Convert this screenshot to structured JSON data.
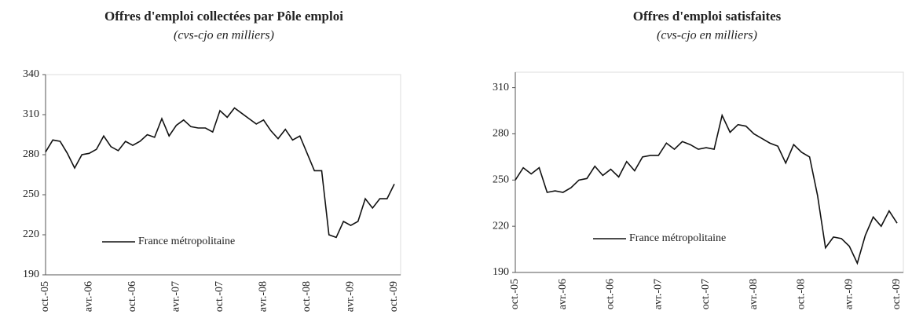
{
  "chart_data": [
    {
      "type": "line",
      "title": "Offres d'emploi collectées par Pôle emploi",
      "subtitle": "(cvs-cjo en milliers)",
      "categories": [
        "oct.-05",
        null,
        null,
        null,
        null,
        null,
        "avr.-06",
        null,
        null,
        null,
        null,
        null,
        "oct.-06",
        null,
        null,
        null,
        null,
        null,
        "avr.-07",
        null,
        null,
        null,
        null,
        null,
        "oct.-07",
        null,
        null,
        null,
        null,
        null,
        "avr.-08",
        null,
        null,
        null,
        null,
        null,
        "oct.-08",
        null,
        null,
        null,
        null,
        null,
        "avr.-09",
        null,
        null,
        null,
        null,
        null,
        "oct.-09"
      ],
      "series": [
        {
          "name": "France métropolitaine",
          "color": "#111111",
          "values": [
            282,
            291,
            290,
            281,
            270,
            280,
            281,
            284,
            294,
            286,
            283,
            290,
            287,
            290,
            295,
            293,
            307,
            294,
            302,
            306,
            301,
            300,
            300,
            297,
            313,
            308,
            315,
            311,
            307,
            303,
            306,
            298,
            292,
            299,
            291,
            294,
            281,
            268,
            268,
            220,
            218,
            230,
            227,
            230,
            247,
            240,
            247,
            247,
            258
          ]
        }
      ],
      "ylim": [
        190,
        340
      ],
      "yticks": [
        190,
        220,
        250,
        280,
        310,
        340
      ]
    },
    {
      "type": "line",
      "title": "Offres d'emploi satisfaites",
      "subtitle": "(cvs-cjo en milliers)",
      "categories": [
        "oct.-05",
        null,
        null,
        null,
        null,
        null,
        "avr.-06",
        null,
        null,
        null,
        null,
        null,
        "oct.-06",
        null,
        null,
        null,
        null,
        null,
        "avr.-07",
        null,
        null,
        null,
        null,
        null,
        "oct.-07",
        null,
        null,
        null,
        null,
        null,
        "avr.-08",
        null,
        null,
        null,
        null,
        null,
        "oct.-08",
        null,
        null,
        null,
        null,
        null,
        "avr.-09",
        null,
        null,
        null,
        null,
        null,
        "oct.-09"
      ],
      "series": [
        {
          "name": "France métropolitaine",
          "color": "#111111",
          "values": [
            250,
            258,
            254,
            258,
            242,
            243,
            242,
            245,
            250,
            251,
            259,
            253,
            257,
            252,
            262,
            256,
            265,
            266,
            266,
            274,
            270,
            275,
            273,
            270,
            271,
            270,
            292,
            281,
            286,
            285,
            280,
            277,
            274,
            272,
            261,
            273,
            268,
            265,
            240,
            206,
            213,
            212,
            207,
            196,
            214,
            226,
            220,
            230,
            222
          ]
        }
      ],
      "ylim": [
        190,
        320
      ],
      "yticks": [
        190,
        220,
        250,
        280,
        310
      ]
    }
  ]
}
